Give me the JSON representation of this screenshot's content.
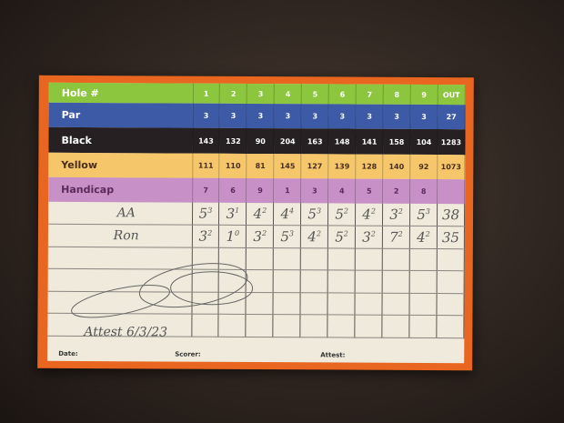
{
  "header": {
    "hole_label": "Hole #",
    "holes": [
      "1",
      "2",
      "3",
      "4",
      "5",
      "6",
      "7",
      "8",
      "9"
    ],
    "out_label": "OUT"
  },
  "par": {
    "label": "Par",
    "values": [
      "3",
      "3",
      "3",
      "3",
      "3",
      "3",
      "3",
      "3",
      "3"
    ],
    "out": "27"
  },
  "black": {
    "label": "Black",
    "values": [
      "143",
      "132",
      "90",
      "204",
      "163",
      "148",
      "141",
      "158",
      "104"
    ],
    "out": "1283"
  },
  "yellow": {
    "label": "Yellow",
    "values": [
      "111",
      "110",
      "81",
      "145",
      "127",
      "139",
      "128",
      "140",
      "92"
    ],
    "out": "1073"
  },
  "handicap": {
    "label": "Handicap",
    "values": [
      "7",
      "6",
      "9",
      "1",
      "3",
      "4",
      "5",
      "2",
      "8"
    ],
    "out": ""
  },
  "players": [
    {
      "name": "AA",
      "scores": [
        "5",
        "3",
        "4",
        "4",
        "5",
        "5",
        "4",
        "3",
        "5"
      ],
      "putts": [
        "3",
        "1",
        "2",
        "4",
        "3",
        "2",
        "2",
        "2",
        "3"
      ],
      "out": "38"
    },
    {
      "name": "Ron",
      "scores": [
        "3",
        "1",
        "3",
        "5",
        "4",
        "5",
        "3",
        "7",
        "4"
      ],
      "putts": [
        "2",
        "0",
        "2",
        "3",
        "2",
        "2",
        "2",
        "2",
        "2"
      ],
      "out": "35"
    }
  ],
  "attest_note": "Attest 6/3/23",
  "footer": {
    "date_label": "Date:",
    "scorer_label": "Scorer:",
    "attest_label": "Attest:"
  }
}
